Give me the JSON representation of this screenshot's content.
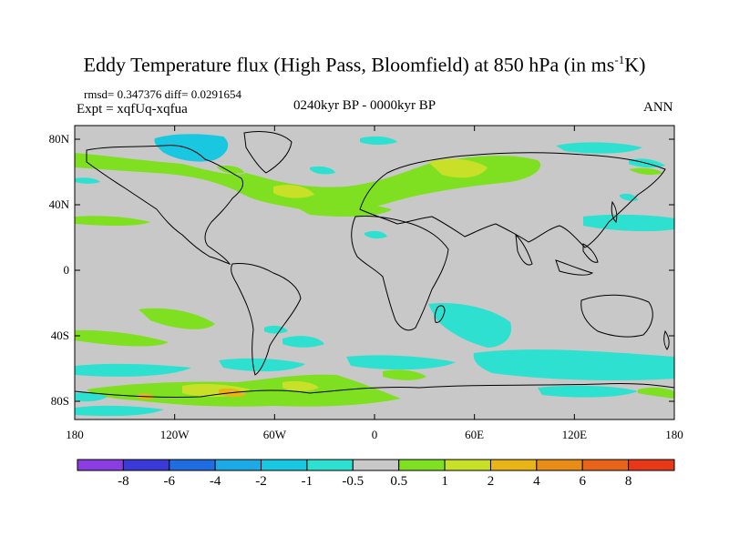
{
  "title": {
    "main": "Eddy Temperature flux (High Pass, Bloomfield) at 850 hPa (in ms",
    "sup": "-1",
    "tail": "K)"
  },
  "stats": "rmsd= 0.347376 diff= 0.0291654",
  "experiment": "Expt = xqfUq-xqfua",
  "period": "0240kyr BP - 0000kyr BP",
  "season": "ANN",
  "lat_labels": [
    "80N",
    "40N",
    "0",
    "40S",
    "80S"
  ],
  "lon_labels": [
    "180",
    "120W",
    "60W",
    "0",
    "60E",
    "120E",
    "180"
  ],
  "colorbar": {
    "labels": [
      "-8",
      "-6",
      "-4",
      "-2",
      "-1",
      "-0.5",
      "0.5",
      "1",
      "2",
      "4",
      "6",
      "8"
    ],
    "colors": [
      "#8a3de0",
      "#3a3ad8",
      "#1f6de0",
      "#1da8e6",
      "#19c8e0",
      "#2ee0d0",
      "#c8c8c8",
      "#7ee020",
      "#c8e028",
      "#e8b418",
      "#e88c18",
      "#e8641a",
      "#e8381a"
    ]
  },
  "map_colors": {
    "background": "#c8c8c8",
    "positive_weak": "#7ee020",
    "positive_mid": "#c8e028",
    "positive_strong": "#e8b418",
    "negative_weak": "#2ee0d0",
    "negative_mid": "#19c8e0",
    "coast": "#000000"
  }
}
